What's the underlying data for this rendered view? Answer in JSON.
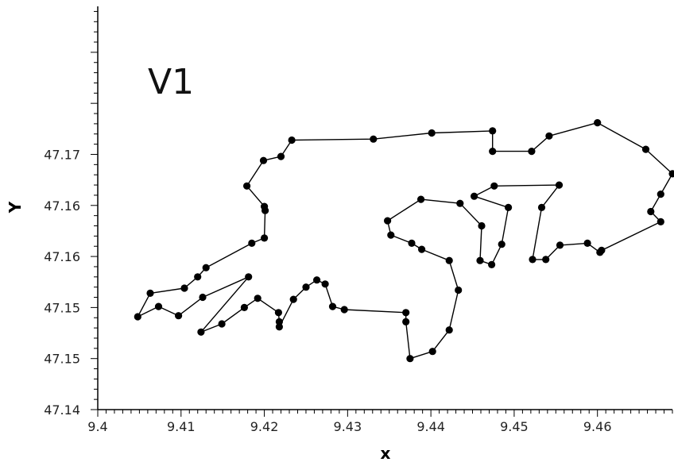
{
  "chart_data": {
    "type": "line",
    "title": "",
    "annotation": "V1",
    "xlabel": "x",
    "ylabel": "Y",
    "xlim": [
      9.4,
      9.469
    ],
    "ylim": [
      47.14,
      47.1795
    ],
    "x_ticks": [
      {
        "value": 9.4,
        "label": "9.4"
      },
      {
        "value": 9.41,
        "label": "9.41"
      },
      {
        "value": 9.42,
        "label": "9.42"
      },
      {
        "value": 9.43,
        "label": "9.43"
      },
      {
        "value": 9.44,
        "label": "9.44"
      },
      {
        "value": 9.45,
        "label": "9.45"
      },
      {
        "value": 9.46,
        "label": "9.46"
      }
    ],
    "y_ticks": [
      {
        "value": 47.14,
        "label": "47.14"
      },
      {
        "value": 47.145,
        "label": "47.15"
      },
      {
        "value": 47.15,
        "label": "47.15"
      },
      {
        "value": 47.155,
        "label": "47.16"
      },
      {
        "value": 47.16,
        "label": "47.16"
      },
      {
        "value": 47.165,
        "label": "47.17"
      }
    ],
    "grid": false,
    "closed_path": true,
    "line_color": "#000000",
    "marker_color": "#000000",
    "series": [
      {
        "x": [
          9.4233,
          9.4331,
          9.4401,
          9.4474,
          9.4474,
          9.4521,
          9.4542,
          9.46,
          9.4658,
          9.469,
          9.4676,
          9.4664,
          9.4676,
          9.4605,
          9.4603,
          9.4588,
          9.4555,
          9.4538,
          9.4522,
          9.4533,
          9.4554,
          9.4476,
          9.4452,
          9.4493,
          9.4485,
          9.4473,
          9.4459,
          9.4461,
          9.4435,
          9.4388,
          9.4348,
          9.4352,
          9.4377,
          9.4389,
          9.4422,
          9.4433,
          9.4422,
          9.4402,
          9.4375,
          9.437,
          9.437,
          9.4296,
          9.4282,
          9.4273,
          9.4263,
          9.425,
          9.4235,
          9.4218,
          9.4218,
          9.4217,
          9.4192,
          9.4176,
          9.4149,
          9.4124,
          9.4181,
          9.4126,
          9.4097,
          9.4073,
          9.4048,
          9.4063,
          9.4104,
          9.412,
          9.413,
          9.4185,
          9.42,
          9.4201,
          9.42,
          9.4179,
          9.4199,
          9.422
        ],
        "y": [
          47.1664,
          47.1665,
          47.1671,
          47.1673,
          47.1653,
          47.1653,
          47.1668,
          47.1681,
          47.1655,
          47.1631,
          47.1611,
          47.1594,
          47.1584,
          47.1556,
          47.1554,
          47.1563,
          47.1561,
          47.1547,
          47.1547,
          47.1598,
          47.162,
          47.1619,
          47.1609,
          47.1598,
          47.1562,
          47.1542,
          47.1546,
          47.158,
          47.1602,
          47.1606,
          47.1585,
          47.1571,
          47.1563,
          47.1557,
          47.1546,
          47.1517,
          47.1478,
          47.1457,
          47.145,
          47.1486,
          47.1495,
          47.1498,
          47.1501,
          47.1523,
          47.1527,
          47.152,
          47.1508,
          47.1481,
          47.1486,
          47.1495,
          47.1509,
          47.15,
          47.1484,
          47.1476,
          47.153,
          47.151,
          47.1492,
          47.1501,
          47.1491,
          47.1514,
          47.1519,
          47.153,
          47.1539,
          47.1563,
          47.1568,
          47.1595,
          47.1599,
          47.1619,
          47.1644,
          47.1648
        ]
      }
    ]
  }
}
